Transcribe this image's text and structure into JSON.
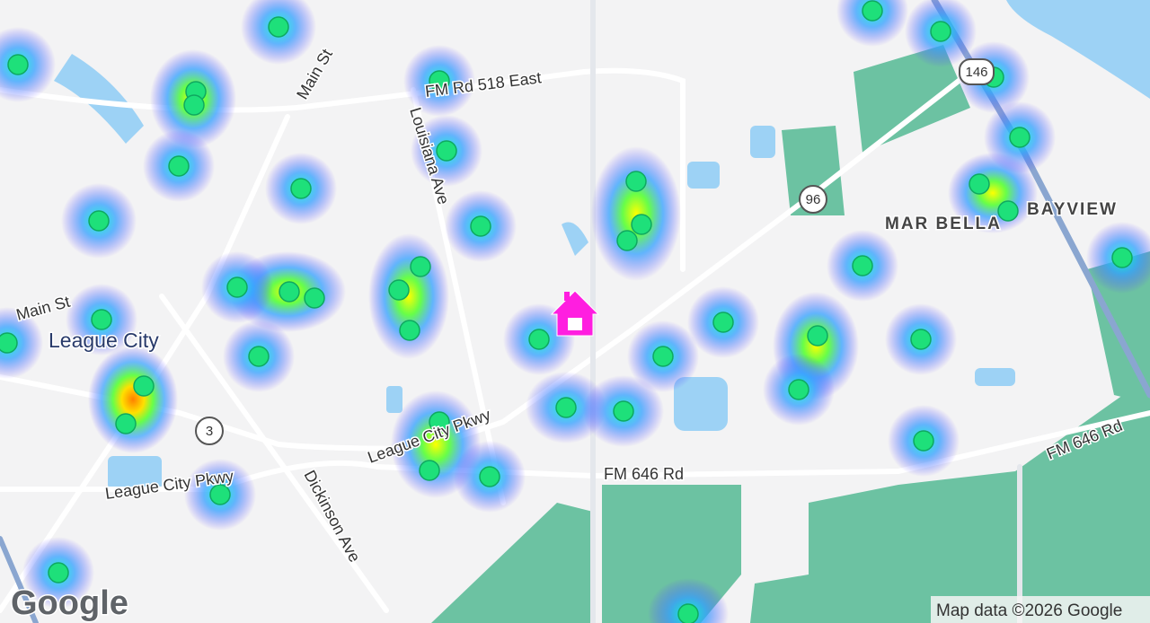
{
  "map": {
    "roads": [
      "Main St",
      "FM Rd 518 East",
      "Louisiana Ave",
      "Main St",
      "League City Pkwy",
      "League City Pkwy",
      "Dickinson Ave",
      "FM 646 Rd",
      "FM 646 Rd"
    ],
    "places": [
      "League City",
      "MAR BELLA",
      "BAYVIEW"
    ],
    "shields": [
      "3",
      "96",
      "146"
    ],
    "logo": "Google",
    "attribution": "Map data ©2026 Google"
  }
}
